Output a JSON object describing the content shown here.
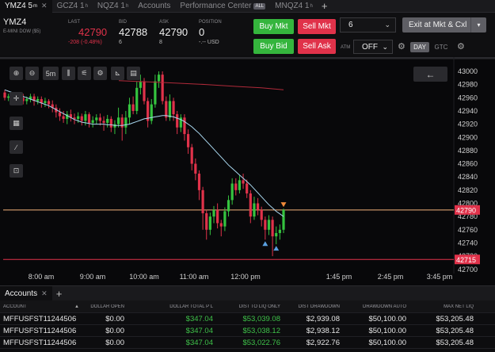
{
  "tabs": [
    {
      "label": "YMZ4 5",
      "sup": "m",
      "close": "✕",
      "active": true
    },
    {
      "label": "GCZ4 1",
      "sup": "h",
      "close": "",
      "active": false
    },
    {
      "label": "NQZ4 1",
      "sup": "h",
      "close": "",
      "active": false
    },
    {
      "label": "Accounts",
      "sup": "",
      "close": "",
      "active": false
    },
    {
      "label": "Performance Center",
      "sup": "",
      "close": "",
      "badge": "ALL",
      "active": false
    },
    {
      "label": "MNQZ4 1",
      "sup": "h",
      "close": "",
      "active": false
    }
  ],
  "quote": {
    "symbol": "YMZ4",
    "description": "E-MINI DOW ($5)",
    "last_label": "LAST",
    "last": "42790",
    "last_change": "-208 (-0.48%)",
    "bid_label": "BID",
    "bid": "42788",
    "bid_size": "6",
    "ask_label": "ASK",
    "ask": "42790",
    "ask_size": "8",
    "position_label": "POSITION",
    "position": "0",
    "position_sub": "-.-- USD"
  },
  "order": {
    "buy_mkt": "Buy Mkt",
    "sell_mkt": "Sell Mkt",
    "buy_bid": "Buy Bid",
    "sell_ask": "Sell Ask",
    "quantity": "6",
    "exit": "Exit at Mkt & Cxl",
    "atm_label": "ATM",
    "atm_value": "OFF",
    "day": "DAY",
    "gtc": "GTC"
  },
  "chart_toolbar": {
    "interval": "5m"
  },
  "chart_data": {
    "type": "candlestick",
    "y_ticks": [
      "43000",
      "42980",
      "42960",
      "42940",
      "42920",
      "42900",
      "42880",
      "42860",
      "42840",
      "42820",
      "42800",
      "42780",
      "42760",
      "42740",
      "42720",
      "42700"
    ],
    "x_ticks": [
      "8:00 am",
      "9:00 am",
      "10:00 am",
      "11:00 am",
      "12:00 pm",
      "1:45 pm",
      "2:45 pm",
      "3:45 pm"
    ],
    "price_labels": [
      {
        "value": "42790",
        "color": "#e0324a"
      },
      {
        "value": "42715",
        "color": "#e0324a"
      }
    ],
    "candles": [
      [
        42968,
        42960,
        42972,
        42956
      ],
      [
        42960,
        42962,
        42966,
        42955
      ],
      [
        42962,
        42958,
        42966,
        42952
      ],
      [
        42958,
        42955,
        42962,
        42950
      ],
      [
        42955,
        42960,
        42964,
        42950
      ],
      [
        42960,
        42955,
        42966,
        42950
      ],
      [
        42955,
        42958,
        42962,
        42950
      ],
      [
        42958,
        42962,
        42966,
        42953
      ],
      [
        42962,
        42955,
        42966,
        42948
      ],
      [
        42955,
        42958,
        42962,
        42950
      ],
      [
        42958,
        42952,
        42962,
        42945
      ],
      [
        42952,
        42955,
        42960,
        42946
      ],
      [
        42955,
        42950,
        42958,
        42944
      ],
      [
        42950,
        42945,
        42956,
        42938
      ],
      [
        42945,
        42938,
        42950,
        42930
      ],
      [
        42938,
        42932,
        42944,
        42925
      ],
      [
        42932,
        42928,
        42940,
        42922
      ],
      [
        42928,
        42935,
        42940,
        42920
      ],
      [
        42935,
        42930,
        42942,
        42924
      ],
      [
        42930,
        42928,
        42936,
        42920
      ],
      [
        42928,
        42932,
        42938,
        42922
      ],
      [
        42932,
        42925,
        42936,
        42918
      ],
      [
        42925,
        42935,
        42940,
        42918
      ],
      [
        42935,
        42922,
        42938,
        42915
      ],
      [
        42922,
        42926,
        42932,
        42915
      ],
      [
        42926,
        42930,
        42935,
        42920
      ],
      [
        42930,
        42925,
        42936,
        42918
      ],
      [
        42925,
        42922,
        42932,
        42910
      ],
      [
        42922,
        42928,
        42934,
        42915
      ],
      [
        42928,
        42915,
        42932,
        42908
      ],
      [
        42915,
        42920,
        42926,
        42905
      ],
      [
        42920,
        42930,
        42945,
        42915
      ],
      [
        42930,
        42915,
        42935,
        42895
      ],
      [
        42915,
        42930,
        42940,
        42905
      ],
      [
        42930,
        42950,
        42960,
        42920
      ],
      [
        42950,
        42940,
        42962,
        42935
      ],
      [
        42940,
        42975,
        42985,
        42935
      ],
      [
        42975,
        42985,
        42995,
        42965
      ],
      [
        42985,
        42955,
        42990,
        42950
      ],
      [
        42955,
        42925,
        42960,
        42915
      ],
      [
        42925,
        42950,
        42958,
        42920
      ],
      [
        42950,
        42985,
        42995,
        42945
      ],
      [
        42985,
        42995,
        43000,
        42975
      ],
      [
        42995,
        42955,
        43000,
        42950
      ],
      [
        42955,
        42930,
        42962,
        42925
      ],
      [
        42930,
        42955,
        42965,
        42925
      ],
      [
        42955,
        42935,
        42960,
        42925
      ],
      [
        42935,
        42915,
        42940,
        42905
      ],
      [
        42915,
        42930,
        42935,
        42908
      ],
      [
        42930,
        42905,
        42935,
        42895
      ],
      [
        42905,
        42885,
        42912,
        42875
      ],
      [
        42885,
        42860,
        42890,
        42850
      ],
      [
        42860,
        42845,
        42868,
        42835
      ],
      [
        42845,
        42820,
        42850,
        42805
      ],
      [
        42820,
        42785,
        42825,
        42760
      ],
      [
        42785,
        42760,
        42790,
        42745
      ],
      [
        42760,
        42780,
        42786,
        42752
      ],
      [
        42780,
        42790,
        42796,
        42770
      ],
      [
        42790,
        42770,
        42800,
        42762
      ],
      [
        42770,
        42765,
        42775,
        42750
      ],
      [
        42765,
        42788,
        42794,
        42758
      ],
      [
        42788,
        42805,
        42812,
        42780
      ],
      [
        42805,
        42830,
        42838,
        42798
      ],
      [
        42830,
        42820,
        42838,
        42812
      ],
      [
        42820,
        42835,
        42842,
        42815
      ],
      [
        42835,
        42830,
        42845,
        42822
      ],
      [
        42830,
        42815,
        42836,
        42808
      ],
      [
        42815,
        42780,
        42820,
        42770
      ],
      [
        42780,
        42800,
        42810,
        42775
      ],
      [
        42800,
        42790,
        42808,
        42782
      ],
      [
        42790,
        42775,
        42795,
        42765
      ],
      [
        42775,
        42760,
        42780,
        42745
      ],
      [
        42760,
        42775,
        42782,
        42752
      ],
      [
        42775,
        42750,
        42780,
        42720
      ],
      [
        42750,
        42755,
        42765,
        42738
      ],
      [
        42755,
        42760,
        42768,
        42745
      ],
      [
        42760,
        42790,
        42792,
        42755
      ]
    ],
    "sma": [
      42972,
      42970,
      42968,
      42966,
      42964,
      42962,
      42960,
      42958,
      42956,
      42954,
      42952,
      42950,
      42948,
      42945,
      42942,
      42939,
      42936,
      42933,
      42930,
      42927,
      42925,
      42923,
      42922,
      42921,
      42920,
      42920,
      42920,
      42920,
      42919,
      42919,
      42918,
      42918,
      42918,
      42919,
      42920,
      42922,
      42924,
      42926,
      42928,
      42929,
      42930,
      42931,
      42932,
      42933,
      42933,
      42932,
      42931,
      42929,
      42927,
      42924,
      42920,
      42916,
      42911,
      42906,
      42900,
      42894,
      42888,
      42882,
      42876,
      42870,
      42864,
      42858,
      42853,
      42848,
      42843,
      42838,
      42833,
      42828,
      42822,
      42816,
      42810,
      42804,
      42798,
      42793,
      42788,
      42784,
      42780
    ],
    "red_line": [
      [
        150,
        42986
      ],
      [
        210,
        42983
      ],
      [
        260,
        42980
      ],
      [
        300,
        42977
      ],
      [
        330,
        42975
      ],
      [
        358,
        42972
      ]
    ],
    "markers": [
      {
        "i": 71,
        "dir": "up"
      },
      {
        "i": 74,
        "dir": "up"
      },
      {
        "i": 76,
        "dir": "down"
      }
    ]
  },
  "accounts_tab": {
    "label": "Accounts",
    "close": "✕"
  },
  "accounts_table": {
    "columns": [
      "ACCOUNT",
      "DOLLAR OPEN",
      "DOLLAR TOTAL P L",
      "DIST TO LIQ ONLY",
      "DIST DRAWDOWN",
      "DRAWDOWN AUTO",
      "MAX NET LIQ"
    ],
    "rows": [
      [
        "MFFUSFST11244506",
        "$0.00",
        "$347.04",
        "$53,039.08",
        "$2,939.08",
        "$50,100.00",
        "$53,205.48"
      ],
      [
        "MFFUSFST11244506",
        "$0.00",
        "$347.04",
        "$53,038.12",
        "$2,938.12",
        "$50,100.00",
        "$53,205.48"
      ],
      [
        "MFFUSFST11244506",
        "$0.00",
        "$347.04",
        "$53,022.76",
        "$2,922.76",
        "$50,100.00",
        "$53,205.48"
      ]
    ]
  }
}
